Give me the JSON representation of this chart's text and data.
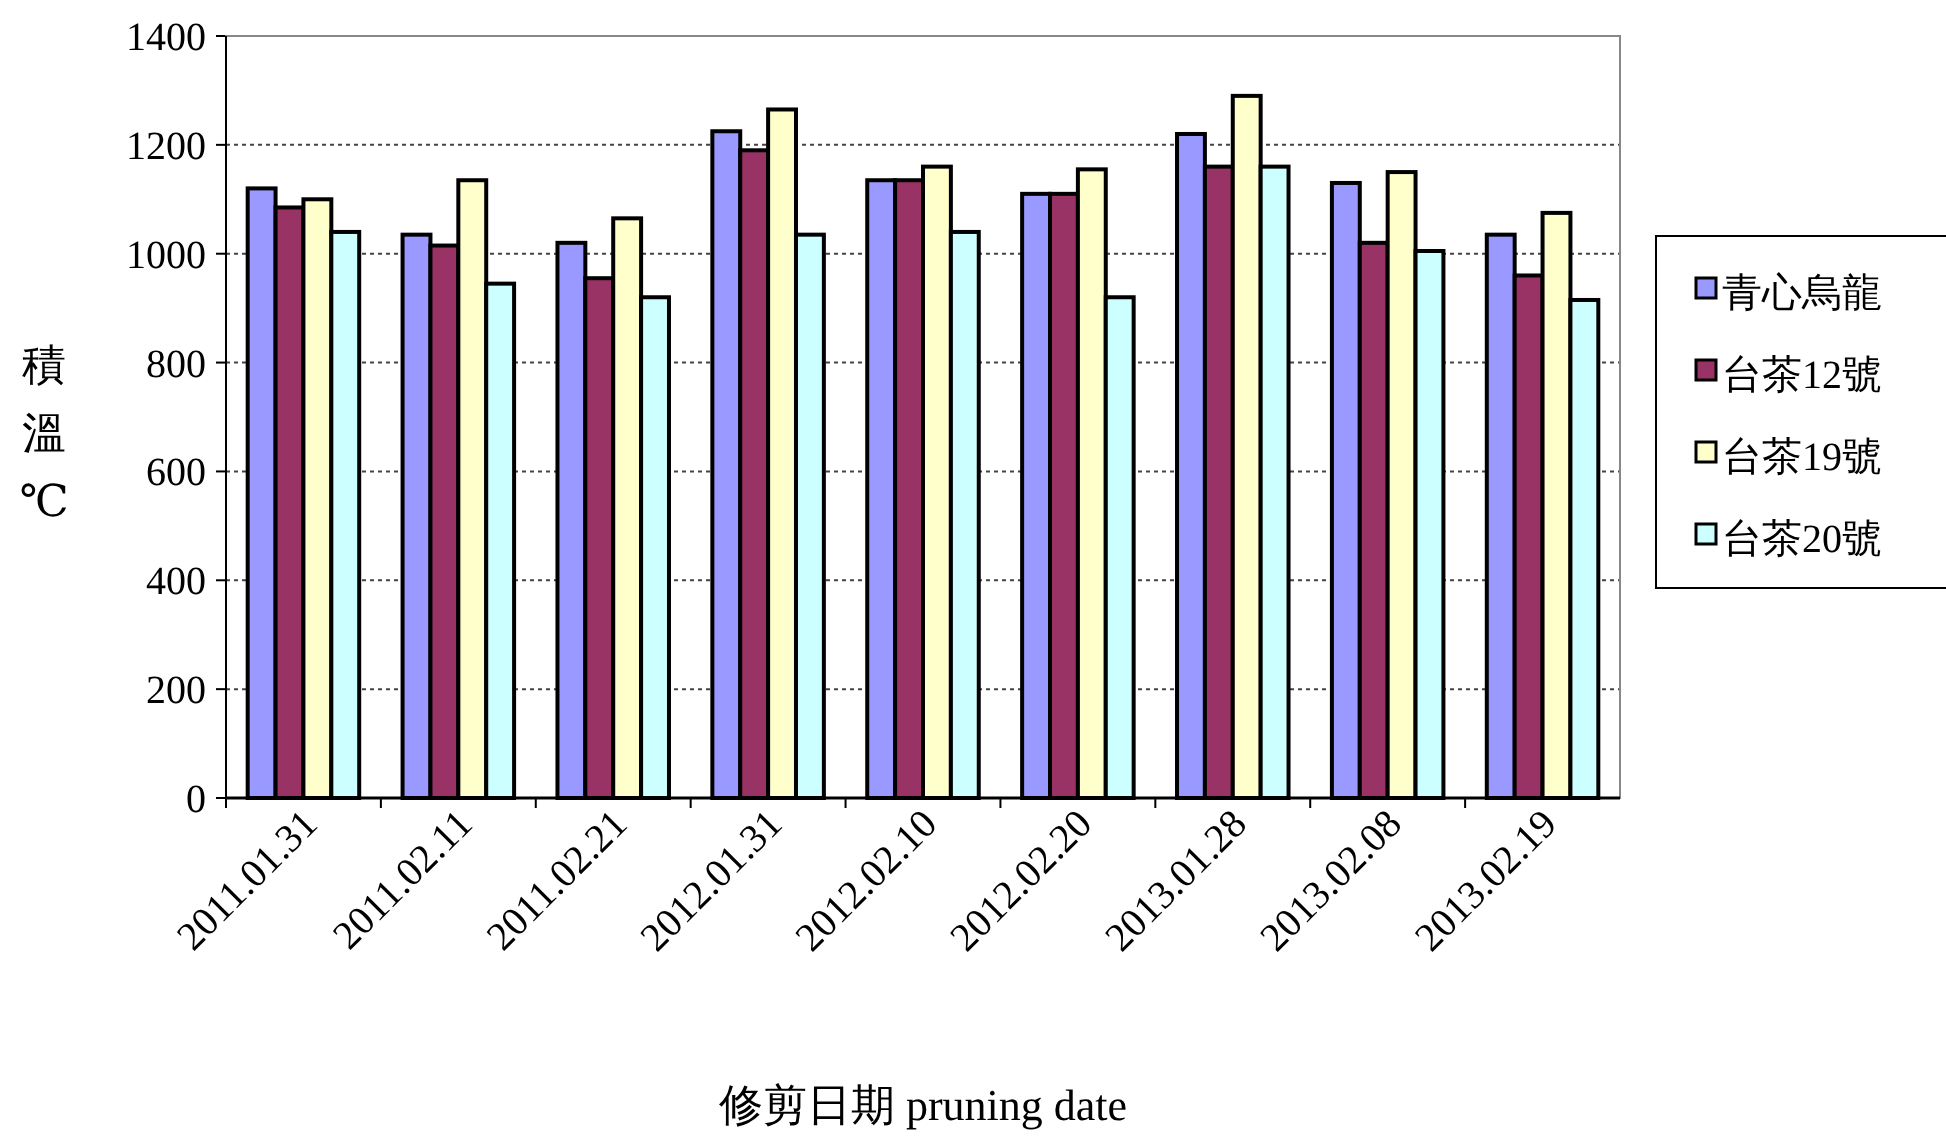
{
  "chart_data": {
    "type": "bar",
    "xlabel": "修剪日期 pruning date",
    "ylabel": "積溫℃",
    "categories": [
      "2011.01.31",
      "2011.02.11",
      "2011.02.21",
      "2012.01.31",
      "2012.02.10",
      "2012.02.20",
      "2013.01.28",
      "2013.02.08",
      "2013.02.19"
    ],
    "series": [
      {
        "name": "青心烏龍",
        "color": "#9999ff",
        "values": [
          1120,
          1035,
          1020,
          1225,
          1135,
          1110,
          1220,
          1130,
          1035
        ]
      },
      {
        "name": "台茶12號",
        "color": "#993366",
        "values": [
          1085,
          1015,
          955,
          1190,
          1135,
          1110,
          1160,
          1020,
          960
        ]
      },
      {
        "name": "台茶19號",
        "color": "#ffffcc",
        "values": [
          1100,
          1135,
          1065,
          1265,
          1160,
          1155,
          1290,
          1150,
          1075
        ]
      },
      {
        "name": "台茶20號",
        "color": "#ccffff",
        "values": [
          1040,
          945,
          920,
          1035,
          1040,
          920,
          1160,
          1005,
          915
        ]
      }
    ],
    "ylim": [
      0,
      1400
    ],
    "yticks": [
      0,
      200,
      400,
      600,
      800,
      1000,
      1200,
      1400
    ],
    "grid": "y",
    "legend": "right"
  }
}
